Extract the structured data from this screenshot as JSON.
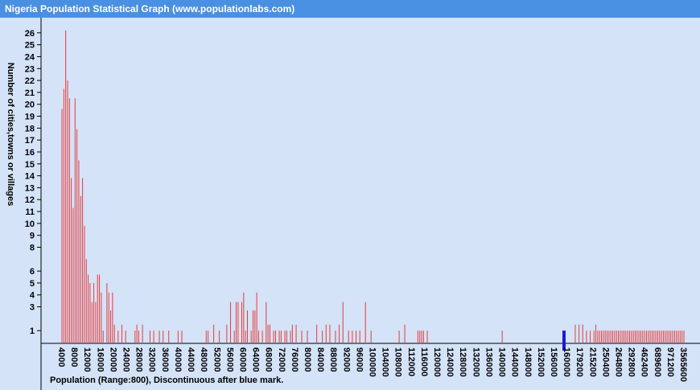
{
  "header": {
    "title": "Nigeria Population Statistical Graph (www.populationlabs.com)"
  },
  "colors": {
    "background": "#d4e3f7",
    "title_bar": "#4a90e2",
    "bars": "#e83a3a",
    "marker": "#1a1adb",
    "text": "#000000"
  },
  "chart_data": {
    "type": "bar",
    "title": "Nigeria Population Statistical Graph (www.populationlabs.com)",
    "xlabel": "Population (Range:800), Discontinuous after blue mark.",
    "ylabel": "Number of cities,towns or villages",
    "y_ticks": [
      1,
      3,
      4,
      5,
      6,
      8,
      9,
      10,
      11,
      12,
      13,
      14,
      15,
      16,
      17,
      18,
      19,
      20,
      21,
      22,
      23,
      24,
      25,
      26
    ],
    "ylim": [
      0,
      27
    ],
    "grid": false,
    "x_tick_labels": [
      "4000",
      "8000",
      "12000",
      "16000",
      "20000",
      "24000",
      "28000",
      "32000",
      "36000",
      "40000",
      "44000",
      "48000",
      "52000",
      "56000",
      "60000",
      "64000",
      "68000",
      "72000",
      "76000",
      "80000",
      "84000",
      "88000",
      "92000",
      "96000",
      "100000",
      "104000",
      "108000",
      "112000",
      "116000",
      "120000",
      "124000",
      "128000",
      "132000",
      "136000",
      "140000",
      "144000",
      "148000",
      "152000",
      "156000",
      "160000",
      "179200",
      "215200",
      "250400",
      "264800",
      "292800",
      "462400",
      "689600",
      "971200",
      "3565600"
    ],
    "bars": [
      19.6,
      21.3,
      26.2,
      22,
      20.5,
      13.8,
      11.3,
      20.5,
      17.9,
      15.3,
      12.3,
      13.8,
      9.8,
      7,
      5.7,
      5,
      3.4,
      5,
      3.4,
      5.7,
      5.7,
      4.2,
      1,
      0,
      5,
      4.2,
      2.7,
      4.2,
      1.5,
      0,
      1,
      0,
      1.5,
      0,
      1,
      0,
      0,
      0,
      0,
      1,
      1.5,
      1,
      0,
      1.5,
      0,
      0,
      0,
      1,
      0,
      1,
      0,
      0,
      1,
      0,
      1,
      0,
      0,
      1,
      0,
      0,
      0,
      0,
      1,
      0,
      1,
      0,
      0,
      0,
      0,
      0,
      0,
      0,
      0,
      0,
      0,
      0,
      0,
      1,
      1,
      0,
      0,
      1.5,
      0,
      0,
      1,
      0,
      0,
      0,
      1.5,
      0,
      3.4,
      0,
      1,
      3.4,
      3.4,
      0,
      3.4,
      4.2,
      1,
      2.7,
      0,
      1,
      2.7,
      2.7,
      4.2,
      1,
      0,
      1,
      0,
      3.4,
      1.5,
      1.5,
      0,
      1,
      1,
      0,
      1,
      1,
      0,
      1,
      1,
      0,
      1,
      1.5,
      0,
      1.5,
      0,
      0,
      1,
      0,
      0,
      1,
      0,
      0,
      0,
      0,
      1.5,
      0,
      0,
      1,
      0,
      1.5,
      0,
      1.5,
      0,
      0,
      1,
      0,
      1.5,
      0,
      3.4,
      0,
      0,
      1,
      0,
      1,
      0,
      1,
      0,
      1,
      0,
      0,
      3.4,
      0,
      0,
      1,
      0,
      0,
      0,
      0,
      0,
      0,
      0,
      0,
      0,
      0,
      0,
      0,
      0,
      0,
      1,
      0,
      0,
      1.5,
      0,
      0,
      0,
      0,
      0,
      0,
      1,
      1,
      1,
      1,
      0,
      1,
      0,
      0,
      0,
      0,
      0,
      0,
      0,
      0,
      0,
      0,
      0,
      0,
      0,
      0,
      0,
      0,
      0,
      0,
      0,
      0,
      0,
      0,
      0,
      0,
      0,
      0,
      0,
      0,
      0,
      0,
      0,
      0,
      0,
      0,
      0,
      0,
      0,
      0,
      0,
      1,
      0,
      0,
      0,
      0,
      0,
      0,
      0,
      0,
      0,
      0,
      0,
      0,
      0,
      0,
      0,
      0,
      0,
      0,
      0,
      0,
      0,
      0,
      0,
      0,
      0,
      0,
      0,
      0,
      0,
      0,
      0,
      0,
      0,
      0,
      0,
      0,
      0,
      0,
      1.5,
      0,
      1.5,
      0,
      1.5,
      0,
      1,
      0,
      1,
      0,
      1,
      1.5,
      1,
      1,
      1,
      1,
      1,
      1,
      1,
      1,
      1,
      1,
      1,
      1,
      1,
      1,
      1,
      1,
      1,
      1,
      1,
      1,
      1,
      1,
      1,
      1,
      1,
      1,
      1,
      1,
      1,
      1,
      1,
      1,
      1,
      1,
      1,
      1,
      1,
      1,
      1,
      1,
      1,
      1,
      1,
      1,
      1,
      1,
      1
    ],
    "marker": {
      "label": "Discontinuous after blue mark",
      "value": 1
    }
  }
}
